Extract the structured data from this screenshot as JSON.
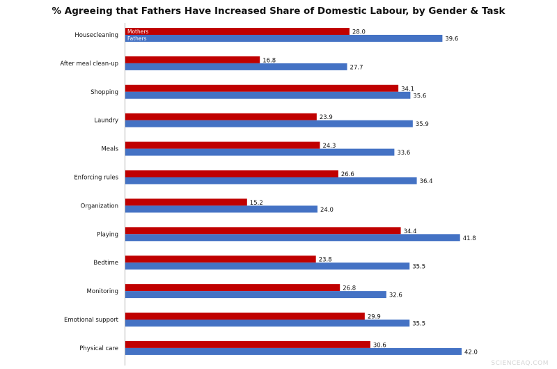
{
  "chart_data": {
    "type": "bar",
    "orientation": "horizontal",
    "title": "% Agreeing that Fathers Have Increased Share of Domestic Labour, by Gender & Task",
    "xlabel": "",
    "ylabel": "",
    "xlim": [
      0,
      42
    ],
    "grid": false,
    "legend_position": "top-left",
    "categories": [
      "Housecleaning",
      "After meal clean-up",
      "Shopping",
      "Laundry",
      "Meals",
      "Enforcing rules",
      "Organization",
      "Playing",
      "Bedtime",
      "Monitoring",
      "Emotional support",
      "Physical care"
    ],
    "series": [
      {
        "name": "Mothers",
        "color": "#c00000",
        "values": [
          28.0,
          16.8,
          34.1,
          23.9,
          24.3,
          26.6,
          15.2,
          34.4,
          23.8,
          26.8,
          29.9,
          30.6
        ],
        "labels": [
          "28.0",
          "16.8",
          "34.1",
          "23.9",
          "24.3",
          "26.6",
          "15.2",
          "34.4",
          "23.8",
          "26.8",
          "29.9",
          "30.6"
        ]
      },
      {
        "name": "Fathers",
        "color": "#4472c4",
        "values": [
          39.6,
          27.7,
          35.6,
          35.9,
          33.6,
          36.4,
          24.0,
          41.8,
          35.5,
          32.6,
          35.5,
          42.0
        ],
        "labels": [
          "39.6",
          "27.7",
          "35.6",
          "35.9",
          "33.6",
          "36.4",
          "24.0",
          "41.8",
          "35.5",
          "32.6",
          "35.5",
          "42.0"
        ]
      }
    ]
  },
  "watermark": "SCIENCEAQ.COM"
}
